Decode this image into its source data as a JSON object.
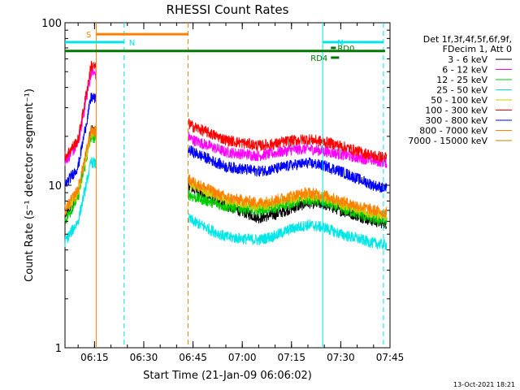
{
  "chart_data": {
    "type": "line",
    "title": "RHESSI Count Rates",
    "xlabel": "Start Time (21-Jan-09 06:06:02)",
    "ylabel": "Count Rate (s⁻¹ detector segment⁻¹)",
    "y_scale": "log",
    "ylim": [
      1,
      100
    ],
    "xlim": [
      "06:06",
      "07:45"
    ],
    "x_ticks": [
      "06:15",
      "06:30",
      "06:45",
      "07:00",
      "07:15",
      "07:30",
      "07:45"
    ],
    "y_ticks": [
      "1",
      "10",
      "100"
    ],
    "grid": false,
    "legend_position": "right",
    "legend_header": [
      "Det 1f,3f,4f,5f,6f,9f,",
      "FDecim 1, Att 0"
    ],
    "series": [
      {
        "name": "3 - 6 keV",
        "color": "#000000",
        "x": [
          "06:06",
          "06:10",
          "06:14",
          "06:45",
          "06:55",
          "07:05",
          "07:10",
          "07:15",
          "07:20",
          "07:25",
          "07:30",
          "07:35",
          "07:40",
          "07:44"
        ],
        "values": [
          6.5,
          9,
          22,
          9.5,
          7.5,
          6.3,
          6.6,
          7.2,
          7.8,
          7.6,
          7.0,
          6.5,
          6.0,
          5.8
        ]
      },
      {
        "name": "6 - 12 keV",
        "color": "#ff00ff",
        "x": [
          "06:06",
          "06:10",
          "06:14",
          "06:45",
          "06:55",
          "07:05",
          "07:10",
          "07:15",
          "07:20",
          "07:25",
          "07:30",
          "07:35",
          "07:40",
          "07:44"
        ],
        "values": [
          14,
          18,
          50,
          19,
          16,
          15.2,
          15.8,
          16.5,
          16.8,
          16.2,
          15.5,
          14.8,
          14.2,
          13.8
        ]
      },
      {
        "name": "12 - 25 keV",
        "color": "#00cc00",
        "x": [
          "06:06",
          "06:10",
          "06:14",
          "06:45",
          "06:55",
          "07:05",
          "07:10",
          "07:15",
          "07:20",
          "07:25",
          "07:30",
          "07:35",
          "07:40",
          "07:44"
        ],
        "values": [
          6.0,
          8.5,
          20,
          8.5,
          7.4,
          7.0,
          7.3,
          7.8,
          8.2,
          7.9,
          7.2,
          6.7,
          6.2,
          6.0
        ]
      },
      {
        "name": "25 - 50 keV",
        "color": "#00e5e5",
        "x": [
          "06:06",
          "06:10",
          "06:14",
          "06:45",
          "06:55",
          "07:05",
          "07:10",
          "07:15",
          "07:20",
          "07:25",
          "07:30",
          "07:35",
          "07:40",
          "07:44"
        ],
        "values": [
          4.5,
          6.0,
          14,
          6.0,
          4.8,
          4.6,
          4.9,
          5.4,
          5.7,
          5.5,
          5.0,
          4.7,
          4.4,
          4.3
        ]
      },
      {
        "name": "50 - 100 keV",
        "color": "#cccc00",
        "x": [
          "06:06",
          "06:10",
          "06:14",
          "06:45",
          "06:55",
          "07:05",
          "07:10",
          "07:15",
          "07:20",
          "07:25",
          "07:30",
          "07:35",
          "07:40",
          "07:44"
        ],
        "values": [
          6.8,
          9,
          21,
          10,
          8.1,
          7.5,
          7.8,
          8.3,
          8.7,
          8.4,
          7.7,
          7.2,
          6.7,
          6.5
        ]
      },
      {
        "name": "100 - 300 keV",
        "color": "#ff0000",
        "x": [
          "06:06",
          "06:10",
          "06:14",
          "06:45",
          "06:55",
          "07:05",
          "07:10",
          "07:15",
          "07:20",
          "07:25",
          "07:30",
          "07:35",
          "07:40",
          "07:44"
        ],
        "values": [
          15,
          19,
          55,
          23,
          19,
          17.5,
          18,
          18.8,
          19.2,
          18.5,
          17.5,
          16.2,
          15.2,
          14.8
        ]
      },
      {
        "name": "300 - 800 keV",
        "color": "#0000ff",
        "x": [
          "06:06",
          "06:10",
          "06:14",
          "06:45",
          "06:55",
          "07:05",
          "07:10",
          "07:15",
          "07:20",
          "07:25",
          "07:30",
          "07:35",
          "07:40",
          "07:44"
        ],
        "values": [
          10,
          13,
          35,
          16,
          13,
          12.2,
          12.6,
          13.3,
          13.7,
          13.2,
          12.2,
          11.0,
          10.0,
          9.5
        ]
      },
      {
        "name": "800 - 7000 keV",
        "color": "#ff8000",
        "x": [
          "06:06",
          "06:10",
          "06:14",
          "06:45",
          "06:55",
          "07:05",
          "07:10",
          "07:15",
          "07:20",
          "07:25",
          "07:30",
          "07:35",
          "07:40",
          "07:44"
        ],
        "values": [
          7.0,
          9.5,
          22,
          10.5,
          8.4,
          7.8,
          8.1,
          8.6,
          9.0,
          8.7,
          8.0,
          7.5,
          7.0,
          6.8
        ]
      },
      {
        "name": "7000 - 15000 keV",
        "color": "#b8860b",
        "x": [],
        "values": []
      }
    ],
    "annotations": {
      "vertical_lines": [
        {
          "time": "06:15:30",
          "color": "#ff8000",
          "style": "solid"
        },
        {
          "time": "06:24:00",
          "color": "#00e5e5",
          "style": "dashed"
        },
        {
          "time": "06:43:30",
          "color": "#ff8000",
          "style": "dashed"
        },
        {
          "time": "07:24:30",
          "color": "#00e5e5",
          "style": "solid"
        },
        {
          "time": "07:43:00",
          "color": "#00e5e5",
          "style": "dashed"
        }
      ],
      "bars": [
        {
          "label": "S",
          "color": "#ff8000",
          "start": "06:15:30",
          "end": "06:43:30",
          "y": 85
        },
        {
          "label": "N",
          "color": "#00e5e5",
          "start": "06:06:00",
          "end": "06:24:00",
          "y": 76
        },
        {
          "label": "N",
          "color": "#00e5e5",
          "start": "07:24:30",
          "end": "07:43:00",
          "y": 76
        },
        {
          "label": "",
          "color": "#007700",
          "start": "06:06:00",
          "end": "07:43:30",
          "y": 67
        },
        {
          "label": "RD0",
          "color": "#007700",
          "start": "07:27:00",
          "end": "07:28:30",
          "y": 70
        },
        {
          "label": "RD4",
          "color": "#007700",
          "start": "07:27:00",
          "end": "07:29:30",
          "y": 61
        }
      ]
    },
    "gaps": [
      [
        "06:15:30",
        "06:43:30"
      ]
    ],
    "footer_date": "13-Oct-2021 18:21"
  }
}
